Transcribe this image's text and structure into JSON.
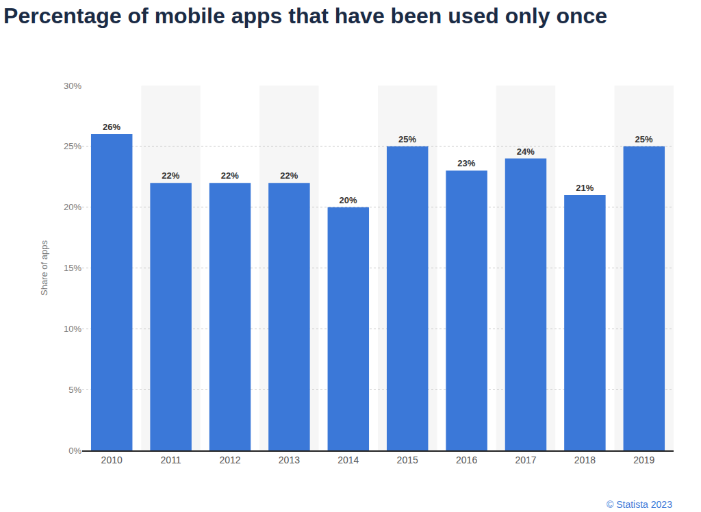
{
  "chart_data": {
    "type": "bar",
    "title": "Percentage of mobile apps that have been used only once",
    "y_label": "Share of apps",
    "categories": [
      "2010",
      "2011",
      "2012",
      "2013",
      "2014",
      "2015",
      "2016",
      "2017",
      "2018",
      "2019"
    ],
    "values": [
      26,
      22,
      22,
      22,
      20,
      25,
      23,
      24,
      21,
      25
    ],
    "value_labels": [
      "26%",
      "22%",
      "22%",
      "22%",
      "20%",
      "25%",
      "23%",
      "24%",
      "21%",
      "25%"
    ],
    "color": "#3b78d8",
    "ylim": [
      0,
      30
    ],
    "yticks": [
      {
        "value": 0,
        "label": "0%"
      },
      {
        "value": 5,
        "label": "5%"
      },
      {
        "value": 10,
        "label": "10%"
      },
      {
        "value": 15,
        "label": "15%"
      },
      {
        "value": 20,
        "label": "20%"
      },
      {
        "value": 25,
        "label": "25%"
      },
      {
        "value": 30,
        "label": "30%"
      }
    ],
    "grid": true,
    "data_labels": true,
    "source": "© Statista 2023"
  }
}
